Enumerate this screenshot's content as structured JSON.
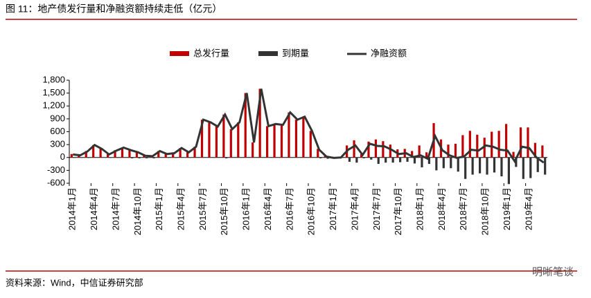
{
  "chart_data": {
    "type": "bar-line",
    "title": "图 11：地产债发行量和净融资额持续走低（亿元）",
    "source": "资料来源：Wind，中信证券研究部",
    "watermark": "明晰笔谈",
    "categories": [
      "2014年1月",
      null,
      null,
      "2014年4月",
      null,
      null,
      "2014年7月",
      null,
      null,
      "2014年10月",
      null,
      null,
      "2015年1月",
      null,
      null,
      "2015年4月",
      null,
      null,
      "2015年7月",
      null,
      null,
      "2015年10月",
      null,
      null,
      "2016年1月",
      null,
      null,
      "2016年4月",
      null,
      null,
      "2016年7月",
      null,
      null,
      "2016年10月",
      null,
      null,
      "2017年1月",
      null,
      null,
      "2017年4月",
      null,
      null,
      "2017年7月",
      null,
      null,
      "2017年10月",
      null,
      null,
      "2018年1月",
      null,
      null,
      "2018年4月",
      null,
      null,
      "2018年7月",
      null,
      null,
      "2018年10月",
      null,
      null,
      "2019年1月",
      null,
      null,
      "2019年4月",
      null,
      null
    ],
    "series": [
      {
        "name": "总发行量",
        "kind": "bar",
        "color": "#c00000",
        "values": [
          80,
          60,
          150,
          290,
          200,
          80,
          170,
          230,
          190,
          140,
          60,
          50,
          150,
          90,
          110,
          220,
          130,
          250,
          880,
          820,
          720,
          1000,
          660,
          820,
          1500,
          350,
          1600,
          730,
          780,
          760,
          1050,
          880,
          950,
          620,
          200,
          50,
          20,
          10,
          280,
          400,
          80,
          370,
          420,
          380,
          300,
          190,
          200,
          150,
          280,
          120,
          800,
          420,
          300,
          320,
          520,
          620,
          530,
          460,
          600,
          620,
          780,
          130,
          700,
          700,
          340,
          280
        ]
      },
      {
        "name": "到期量",
        "kind": "bar",
        "color": "#333333",
        "values": [
          -10,
          -10,
          -10,
          0,
          0,
          -10,
          -10,
          0,
          -20,
          -20,
          -20,
          -20,
          0,
          -10,
          -10,
          0,
          -10,
          0,
          0,
          0,
          0,
          -20,
          0,
          0,
          0,
          0,
          0,
          0,
          0,
          0,
          0,
          0,
          0,
          0,
          -20,
          -30,
          -30,
          -10,
          -100,
          -120,
          -20,
          -50,
          -150,
          -120,
          -120,
          -110,
          -100,
          -140,
          -230,
          -150,
          -300,
          -250,
          -250,
          -330,
          -500,
          -400,
          -370,
          -400,
          -350,
          -440,
          -620,
          -220,
          -500,
          -480,
          -340,
          -400
        ]
      },
      {
        "name": "净融资额",
        "kind": "line",
        "color": "#333333",
        "values": [
          70,
          50,
          140,
          290,
          200,
          70,
          160,
          230,
          170,
          120,
          40,
          30,
          150,
          80,
          100,
          220,
          120,
          250,
          880,
          820,
          720,
          1000,
          660,
          820,
          1500,
          350,
          1600,
          730,
          780,
          760,
          1050,
          880,
          950,
          620,
          180,
          20,
          -10,
          0,
          180,
          280,
          60,
          320,
          270,
          260,
          180,
          80,
          100,
          10,
          50,
          -30,
          500,
          170,
          50,
          -10,
          20,
          180,
          160,
          280,
          250,
          180,
          160,
          -90,
          250,
          220,
          0,
          -120
        ]
      }
    ],
    "ylim": [
      -600,
      1800
    ],
    "yticks": [
      {
        "value": 1800,
        "label": "1,800"
      },
      {
        "value": 1500,
        "label": "1,500"
      },
      {
        "value": 1200,
        "label": "1,200"
      },
      900,
      600,
      300,
      0,
      -300,
      -600
    ],
    "legend": "top"
  }
}
